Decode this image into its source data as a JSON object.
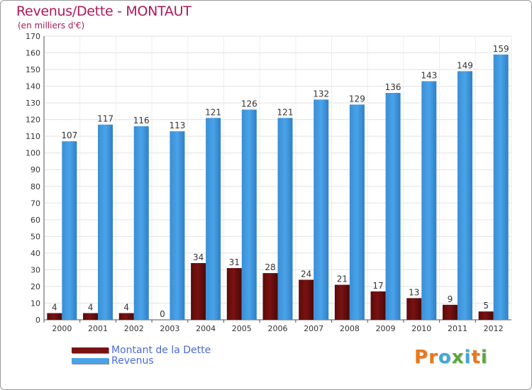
{
  "title": "Revenus/Dette - MONTAUT",
  "subtitle": "(en milliers d'€)",
  "colors": {
    "dette": "#7a1212",
    "revenus": "#4aa3e8",
    "title": "#b0185a",
    "legend_text": "#4a6ad8"
  },
  "legend": [
    {
      "label": "Montant de la Dette",
      "color": "#7a1212"
    },
    {
      "label": "Revenus",
      "color": "#4aa3e8"
    }
  ],
  "logo": {
    "letters": [
      "P",
      "r",
      "o",
      "x",
      "i",
      "t",
      "i"
    ],
    "colors": [
      "#e8791c",
      "#e8791c",
      "#3fa9d8",
      "#5aa83c",
      "#3fa9d8",
      "#e8791c",
      "#5aa83c"
    ]
  },
  "chart_data": {
    "type": "bar",
    "categories": [
      "2000",
      "2001",
      "2002",
      "2003",
      "2004",
      "2005",
      "2006",
      "2007",
      "2008",
      "2009",
      "2010",
      "2011",
      "2012"
    ],
    "series": [
      {
        "name": "Montant de la Dette",
        "values": [
          4,
          4,
          4,
          0,
          34,
          31,
          28,
          24,
          21,
          17,
          13,
          9,
          5
        ]
      },
      {
        "name": "Revenus",
        "values": [
          107,
          117,
          116,
          113,
          121,
          126,
          121,
          132,
          129,
          136,
          143,
          149,
          159
        ]
      }
    ],
    "title": "Revenus/Dette - MONTAUT",
    "ylabel": "(en milliers d'€)",
    "ylim": [
      0,
      170
    ],
    "yticks": [
      0,
      10,
      20,
      30,
      40,
      50,
      60,
      70,
      80,
      90,
      100,
      110,
      120,
      130,
      140,
      150,
      160,
      170
    ],
    "grid": true,
    "legend_position": "bottom-left"
  }
}
